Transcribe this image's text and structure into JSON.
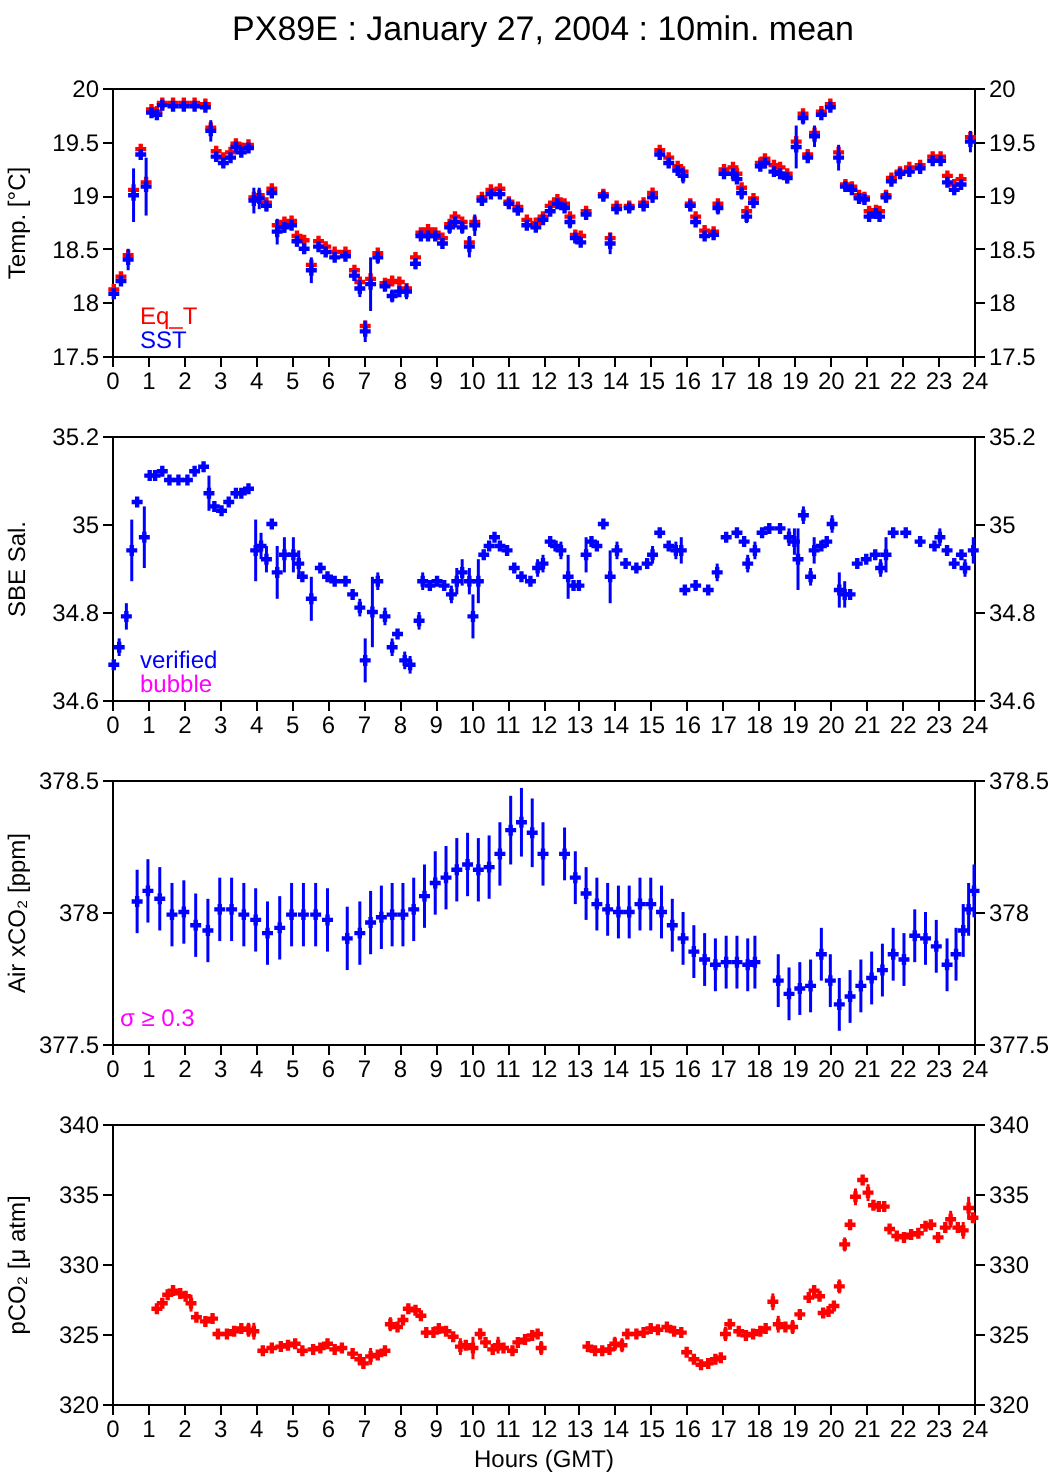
{
  "chart_data": [
    {
      "type": "scatter",
      "title": "PX89E : January 27, 2004 : 10min. mean",
      "ylabel": "Temp. [°C]",
      "marker": "cross",
      "legend": "bottom left",
      "xlim": [
        0,
        24
      ],
      "xticks": [
        0,
        1,
        2,
        3,
        4,
        5,
        6,
        7,
        8,
        9,
        10,
        11,
        12,
        13,
        14,
        15,
        16,
        17,
        18,
        19,
        20,
        21,
        22,
        23,
        24
      ],
      "ylim": [
        17.5,
        20
      ],
      "yticks": [
        17.5,
        18,
        18.5,
        19,
        19.5,
        20
      ],
      "y2lim": [
        17.5,
        20
      ],
      "y2ticks": [
        17.5,
        18,
        18.5,
        19,
        19.5,
        20
      ],
      "x": [
        0.05,
        0.25,
        0.45,
        0.6,
        0.8,
        0.95,
        1.1,
        1.25,
        1.4,
        1.7,
        2.0,
        2.3,
        2.6,
        2.75,
        2.9,
        3.1,
        3.3,
        3.45,
        3.6,
        3.8,
        3.95,
        4.1,
        4.3,
        4.45,
        4.6,
        4.8,
        5.0,
        5.15,
        5.35,
        5.55,
        5.75,
        5.95,
        6.2,
        6.5,
        6.75,
        6.9,
        7.05,
        7.2,
        7.4,
        7.6,
        7.8,
        8.0,
        8.2,
        8.45,
        8.6,
        8.8,
        9.0,
        9.2,
        9.4,
        9.55,
        9.75,
        9.95,
        10.1,
        10.3,
        10.55,
        10.8,
        11.05,
        11.3,
        11.55,
        11.8,
        12.0,
        12.2,
        12.4,
        12.6,
        12.75,
        12.9,
        13.05,
        13.2,
        13.68,
        13.87,
        14.05,
        14.4,
        14.8,
        15.05,
        15.25,
        15.5,
        15.75,
        15.9,
        16.1,
        16.25,
        16.5,
        16.75,
        16.87,
        17.04,
        17.29,
        17.4,
        17.53,
        17.67,
        17.86,
        18.05,
        18.18,
        18.43,
        18.6,
        18.8,
        19.05,
        19.24,
        19.37,
        19.56,
        19.75,
        20.0,
        20.23,
        20.42,
        20.6,
        20.8,
        20.95,
        21.08,
        21.27,
        21.37,
        21.55,
        21.7,
        21.94,
        22.2,
        22.5,
        22.85,
        23.07,
        23.26,
        23.45,
        23.64,
        23.9
      ],
      "series": [
        {
          "name": "Eq_T",
          "color": "#ff0000",
          "values": [
            18.12,
            18.24,
            18.44,
            19.05,
            19.43,
            19.12,
            19.8,
            19.78,
            19.86,
            19.86,
            19.86,
            19.86,
            19.85,
            19.63,
            19.41,
            19.35,
            19.4,
            19.48,
            19.44,
            19.47,
            18.98,
            19.0,
            18.93,
            19.06,
            18.72,
            18.75,
            18.76,
            18.62,
            18.58,
            18.35,
            18.57,
            18.52,
            18.47,
            18.47,
            18.3,
            18.19,
            17.78,
            18.22,
            18.46,
            18.18,
            18.2,
            18.19,
            18.13,
            18.42,
            18.65,
            18.68,
            18.65,
            18.6,
            18.73,
            18.8,
            18.75,
            18.56,
            18.75,
            18.98,
            19.05,
            19.06,
            18.94,
            18.89,
            18.77,
            18.74,
            18.8,
            18.9,
            18.96,
            18.92,
            18.8,
            18.63,
            18.62,
            18.85,
            19.01,
            18.6,
            18.9,
            18.9,
            18.93,
            19.02,
            19.42,
            19.35,
            19.27,
            19.22,
            18.92,
            18.8,
            18.67,
            18.66,
            18.92,
            19.24,
            19.26,
            19.2,
            19.07,
            18.85,
            18.97,
            19.3,
            19.34,
            19.28,
            19.26,
            19.2,
            19.5,
            19.76,
            19.38,
            19.58,
            19.78,
            19.85,
            19.4,
            19.1,
            19.08,
            19.0,
            18.98,
            18.85,
            18.86,
            18.85,
            19.0,
            19.16,
            19.22,
            19.26,
            19.28,
            19.36,
            19.36,
            19.18,
            19.1,
            19.15,
            19.54
          ]
        },
        {
          "name": "SST",
          "color": "#0000ff",
          "values": [
            18.08,
            18.2,
            18.4,
            19.0,
            19.38,
            19.08,
            19.77,
            19.75,
            19.84,
            19.83,
            19.83,
            19.83,
            19.82,
            19.6,
            19.36,
            19.3,
            19.35,
            19.45,
            19.4,
            19.44,
            18.95,
            18.97,
            18.9,
            19.02,
            18.66,
            18.7,
            18.72,
            18.57,
            18.5,
            18.3,
            18.52,
            18.47,
            18.42,
            18.43,
            18.25,
            18.13,
            17.73,
            18.17,
            18.42,
            18.15,
            18.06,
            18.1,
            18.1,
            18.36,
            18.62,
            18.62,
            18.62,
            18.55,
            18.7,
            18.75,
            18.7,
            18.52,
            18.72,
            18.95,
            19.01,
            19.01,
            18.92,
            18.86,
            18.72,
            18.7,
            18.77,
            18.85,
            18.92,
            18.88,
            18.75,
            18.6,
            18.56,
            18.82,
            18.99,
            18.55,
            18.87,
            18.88,
            18.9,
            18.98,
            19.38,
            19.3,
            19.23,
            19.18,
            18.9,
            18.75,
            18.62,
            18.63,
            18.88,
            19.2,
            19.2,
            19.15,
            19.02,
            18.8,
            18.93,
            19.27,
            19.3,
            19.22,
            19.2,
            19.16,
            19.45,
            19.72,
            19.35,
            19.55,
            19.75,
            19.82,
            19.35,
            19.08,
            19.05,
            18.97,
            18.96,
            18.8,
            18.83,
            18.8,
            18.98,
            19.13,
            19.2,
            19.22,
            19.25,
            19.32,
            19.32,
            19.12,
            19.05,
            19.1,
            19.5
          ],
          "errors": [
            null,
            0.04,
            0.1,
            0.25,
            null,
            0.27,
            0.04,
            null,
            null,
            null,
            null,
            null,
            null,
            0.1,
            null,
            0.03,
            null,
            null,
            0.04,
            0.03,
            0.12,
            0.1,
            0.05,
            null,
            0.12,
            0.05,
            0.04,
            0.05,
            0.03,
            0.12,
            0.04,
            null,
            null,
            null,
            0.03,
            0.08,
            0.1,
            0.25,
            0.06,
            0.04,
            0.06,
            0.03,
            0.07,
            0.05,
            0.04,
            null,
            null,
            0.05,
            0.06,
            0.05,
            0.06,
            0.1,
            0.1,
            0.05,
            null,
            null,
            null,
            null,
            0.04,
            0.04,
            null,
            null,
            null,
            0.04,
            0.06,
            null,
            null,
            0.05,
            null,
            0.1,
            null,
            null,
            null,
            0.05,
            0.04,
            0.04,
            0.04,
            0.07,
            0.05,
            null,
            null,
            0.03,
            0.06,
            0.03,
            null,
            0.03,
            0.06,
            0.06,
            0.05,
            0.04,
            null,
            0.04,
            0.04,
            0.05,
            0.2,
            0.06,
            0.04,
            0.1,
            0.03,
            null,
            0.12,
            null,
            0.03,
            null,
            0.04,
            null,
            0.03,
            0.05,
            0.05,
            null,
            null,
            null,
            null,
            0.03,
            null,
            0.04,
            null,
            0.04,
            0.1
          ]
        }
      ]
    },
    {
      "type": "scatter",
      "ylabel": "SBE Sal.",
      "marker": "cross",
      "legend": "bottom left",
      "xlim": [
        0,
        24
      ],
      "xticks": [
        0,
        1,
        2,
        3,
        4,
        5,
        6,
        7,
        8,
        9,
        10,
        11,
        12,
        13,
        14,
        15,
        16,
        17,
        18,
        19,
        20,
        21,
        22,
        23,
        24
      ],
      "ylim": [
        34.6,
        35.2
      ],
      "yticks": [
        34.6,
        34.8,
        35,
        35.2
      ],
      "y2lim": [
        34.6,
        35.2
      ],
      "y2ticks": [
        34.6,
        34.8,
        35,
        35.2
      ],
      "series": [
        {
          "name": "verified",
          "color": "#0000ff",
          "x": [
            0.05,
            0.2,
            0.4,
            0.55,
            0.7,
            0.9,
            1.05,
            1.2,
            1.4,
            1.6,
            1.85,
            2.1,
            2.3,
            2.55,
            2.7,
            2.85,
            3.05,
            3.25,
            3.45,
            3.6,
            3.8,
            4.0,
            4.15,
            4.3,
            4.45,
            4.6,
            4.8,
            5.05,
            5.2,
            5.3,
            5.55,
            5.8,
            6.0,
            6.2,
            6.5,
            6.7,
            6.9,
            7.05,
            7.25,
            7.4,
            7.6,
            7.8,
            7.95,
            8.15,
            8.3,
            8.55,
            8.65,
            8.85,
            9.05,
            9.25,
            9.45,
            9.6,
            9.75,
            9.95,
            10.05,
            10.2,
            10.35,
            10.5,
            10.65,
            10.8,
            11.0,
            11.2,
            11.4,
            11.65,
            11.85,
            12.0,
            12.2,
            12.35,
            12.5,
            12.7,
            12.85,
            13.0,
            13.2,
            13.35,
            13.5,
            13.68,
            13.87,
            14.06,
            14.3,
            14.6,
            14.9,
            15.05,
            15.25,
            15.5,
            15.7,
            15.85,
            15.95,
            16.25,
            16.6,
            16.85,
            17.1,
            17.4,
            17.6,
            17.7,
            17.9,
            18.1,
            18.3,
            18.6,
            18.85,
            19.0,
            19.1,
            19.25,
            19.45,
            19.55,
            19.75,
            19.9,
            20.05,
            20.25,
            20.4,
            20.55,
            20.75,
            21.0,
            21.25,
            21.4,
            21.55,
            21.75,
            22.1,
            22.5,
            22.9,
            23.05,
            23.25,
            23.45,
            23.65,
            23.75,
            23.98
          ],
          "values": [
            34.68,
            34.72,
            34.79,
            34.94,
            35.05,
            34.97,
            35.11,
            35.11,
            35.12,
            35.1,
            35.1,
            35.1,
            35.12,
            35.13,
            35.07,
            35.04,
            35.03,
            35.05,
            35.07,
            35.07,
            35.08,
            34.94,
            34.95,
            34.92,
            35.0,
            34.89,
            34.93,
            34.93,
            34.91,
            34.88,
            34.83,
            34.9,
            34.88,
            34.87,
            34.87,
            34.84,
            34.81,
            34.69,
            34.8,
            34.87,
            34.79,
            34.72,
            34.75,
            34.69,
            34.68,
            34.78,
            34.87,
            34.86,
            34.87,
            34.86,
            34.84,
            34.87,
            34.89,
            34.87,
            34.79,
            34.87,
            34.93,
            34.95,
            34.97,
            34.95,
            34.94,
            34.9,
            34.88,
            34.87,
            34.9,
            34.91,
            34.96,
            34.95,
            34.94,
            34.88,
            34.86,
            34.86,
            34.93,
            34.96,
            34.95,
            35.0,
            34.88,
            34.94,
            34.91,
            34.9,
            34.91,
            34.93,
            34.98,
            34.95,
            34.94,
            34.94,
            34.85,
            34.86,
            34.85,
            34.89,
            34.97,
            34.98,
            34.96,
            34.91,
            34.94,
            34.98,
            34.99,
            34.99,
            34.97,
            34.96,
            34.92,
            35.02,
            34.88,
            34.94,
            34.95,
            34.96,
            35.0,
            34.85,
            34.84,
            34.84,
            34.91,
            34.92,
            34.93,
            34.9,
            34.93,
            34.98,
            34.98,
            34.96,
            34.95,
            34.97,
            34.94,
            34.91,
            34.93,
            34.9,
            34.94
          ],
          "errors": [
            null,
            0.02,
            0.03,
            0.07,
            null,
            0.07,
            null,
            null,
            null,
            null,
            null,
            null,
            null,
            null,
            0.04,
            null,
            null,
            null,
            null,
            null,
            null,
            0.07,
            0.03,
            0.03,
            null,
            0.06,
            0.04,
            0.04,
            0.03,
            null,
            0.05,
            null,
            null,
            null,
            null,
            null,
            0.02,
            0.05,
            0.08,
            0.02,
            0.02,
            0.02,
            null,
            0.02,
            0.02,
            0.02,
            0.02,
            null,
            null,
            null,
            0.02,
            0.03,
            0.03,
            0.03,
            0.05,
            0.05,
            null,
            null,
            null,
            null,
            null,
            null,
            null,
            null,
            0.02,
            0.02,
            null,
            null,
            0.02,
            0.05,
            null,
            null,
            0.04,
            null,
            null,
            null,
            0.06,
            0.02,
            null,
            null,
            null,
            0.02,
            null,
            null,
            0.02,
            0.03,
            null,
            null,
            null,
            0.02,
            null,
            null,
            null,
            0.02,
            0.02,
            null,
            null,
            null,
            0.02,
            0.03,
            0.07,
            0.02,
            0.02,
            0.03,
            null,
            null,
            0.02,
            0.04,
            0.03,
            null,
            null,
            null,
            null,
            0.02,
            0.04,
            null,
            null,
            null,
            null,
            0.02,
            null,
            null,
            null,
            0.02,
            0.03
          ]
        },
        {
          "name": "bubble",
          "color": "#ff00ff"
        }
      ]
    },
    {
      "type": "scatter",
      "ylabel": "Air xCO₂ [ppm]",
      "marker": "cross",
      "annotations": [
        "σ ≥ 0.3"
      ],
      "xlim": [
        0,
        24
      ],
      "xticks": [
        0,
        1,
        2,
        3,
        4,
        5,
        6,
        7,
        8,
        9,
        10,
        11,
        12,
        13,
        14,
        15,
        16,
        17,
        18,
        19,
        20,
        21,
        22,
        23,
        24
      ],
      "ylim": [
        377.5,
        378.5
      ],
      "yticks": [
        377.5,
        378,
        378.5
      ],
      "y2lim": [
        377.5,
        378.5
      ],
      "y2ticks": [
        377.5,
        378,
        378.5
      ],
      "series": [
        {
          "color": "#0000ff",
          "x": [
            0.7,
            1.0,
            1.33,
            1.67,
            2.0,
            2.33,
            2.67,
            3.0,
            3.33,
            3.67,
            4.0,
            4.33,
            4.67,
            5.0,
            5.33,
            5.67,
            6.0,
            6.55,
            6.9,
            7.2,
            7.5,
            7.8,
            8.1,
            8.4,
            8.7,
            9.0,
            9.3,
            9.6,
            9.9,
            10.2,
            10.5,
            10.8,
            11.1,
            11.4,
            11.7,
            12.0,
            12.6,
            12.9,
            13.2,
            13.5,
            13.8,
            14.1,
            14.4,
            14.7,
            15.0,
            15.3,
            15.6,
            15.9,
            16.2,
            16.5,
            16.8,
            17.1,
            17.4,
            17.7,
            17.9,
            18.55,
            18.85,
            19.15,
            19.45,
            19.75,
            20.0,
            20.25,
            20.55,
            20.85,
            21.15,
            21.45,
            21.75,
            22.05,
            22.35,
            22.65,
            22.95,
            23.25,
            23.5,
            23.7,
            23.85,
            24.0
          ],
          "values": [
            378.04,
            378.08,
            378.05,
            377.99,
            378.0,
            377.95,
            377.93,
            378.01,
            378.01,
            377.99,
            377.97,
            377.92,
            377.94,
            377.99,
            377.99,
            377.99,
            377.97,
            377.9,
            377.92,
            377.96,
            377.98,
            377.99,
            377.99,
            378.01,
            378.06,
            378.11,
            378.13,
            378.16,
            378.18,
            378.16,
            378.17,
            378.22,
            378.31,
            378.34,
            378.3,
            378.22,
            378.22,
            378.13,
            378.07,
            378.03,
            378.01,
            378.0,
            378.0,
            378.03,
            378.03,
            378.0,
            377.95,
            377.9,
            377.85,
            377.82,
            377.8,
            377.81,
            377.81,
            377.8,
            377.81,
            377.74,
            377.69,
            377.71,
            377.72,
            377.84,
            377.74,
            377.65,
            377.68,
            377.72,
            377.75,
            377.78,
            377.84,
            377.82,
            377.91,
            377.9,
            377.87,
            377.8,
            377.84,
            377.93,
            378.01,
            378.08
          ],
          "errors": [
            0.12,
            0.12,
            0.12,
            0.12,
            0.12,
            0.12,
            0.12,
            0.12,
            0.12,
            0.12,
            0.12,
            0.12,
            0.12,
            0.12,
            0.12,
            0.12,
            0.12,
            0.12,
            0.12,
            0.12,
            0.12,
            0.12,
            0.12,
            0.12,
            0.12,
            0.12,
            0.12,
            0.12,
            0.12,
            0.12,
            0.12,
            0.12,
            0.13,
            0.13,
            0.13,
            0.12,
            0.1,
            0.1,
            0.1,
            0.1,
            0.1,
            0.1,
            0.1,
            0.1,
            0.1,
            0.1,
            0.1,
            0.1,
            0.1,
            0.1,
            0.1,
            0.1,
            0.1,
            0.1,
            0.1,
            0.1,
            0.1,
            0.1,
            0.1,
            0.1,
            0.1,
            0.1,
            0.1,
            0.1,
            0.1,
            0.1,
            0.1,
            0.1,
            0.1,
            0.1,
            0.1,
            0.1,
            0.1,
            0.1,
            0.1,
            0.1
          ]
        }
      ]
    },
    {
      "type": "scatter",
      "ylabel": "pCO₂ [μ atm]",
      "xlabel": "Hours (GMT)",
      "marker": "cross",
      "xlim": [
        0,
        24
      ],
      "xticks": [
        0,
        1,
        2,
        3,
        4,
        5,
        6,
        7,
        8,
        9,
        10,
        11,
        12,
        13,
        14,
        15,
        16,
        17,
        18,
        19,
        20,
        21,
        22,
        23,
        24
      ],
      "ylim": [
        320,
        340
      ],
      "yticks": [
        320,
        325,
        330,
        335,
        340
      ],
      "y2lim": [
        320,
        340
      ],
      "y2ticks": [
        320,
        325,
        330,
        335,
        340
      ],
      "series": [
        {
          "color": "#ff0000",
          "x": [
            1.25,
            1.4,
            1.55,
            1.7,
            1.9,
            2.05,
            2.2,
            2.35,
            2.6,
            2.8,
            2.95,
            3.2,
            3.4,
            3.6,
            3.8,
            3.95,
            4.2,
            4.45,
            4.7,
            4.9,
            5.1,
            5.3,
            5.6,
            5.8,
            6.0,
            6.2,
            6.4,
            6.7,
            6.9,
            7.0,
            7.2,
            7.4,
            7.6,
            7.75,
            7.95,
            8.1,
            8.25,
            8.45,
            8.6,
            8.75,
            8.95,
            9.1,
            9.3,
            9.5,
            9.7,
            9.85,
            10.05,
            10.25,
            10.4,
            10.6,
            10.75,
            10.9,
            11.15,
            11.3,
            11.5,
            11.7,
            11.85,
            11.95,
            13.25,
            13.45,
            13.65,
            13.85,
            14.0,
            14.2,
            14.35,
            14.6,
            14.8,
            15.0,
            15.2,
            15.45,
            15.65,
            15.85,
            16.0,
            16.2,
            16.4,
            16.6,
            16.8,
            16.95,
            17.08,
            17.2,
            17.45,
            17.65,
            17.85,
            18.05,
            18.2,
            18.4,
            18.55,
            18.75,
            18.95,
            19.15,
            19.4,
            19.55,
            19.7,
            19.8,
            19.95,
            20.1,
            20.25,
            20.4,
            20.55,
            20.7,
            20.9,
            21.05,
            21.2,
            21.35,
            21.5,
            21.65,
            21.85,
            22.05,
            22.25,
            22.45,
            22.65,
            22.8,
            23.0,
            23.2,
            23.35,
            23.55,
            23.7,
            23.85,
            23.97
          ],
          "values": [
            326.8,
            327.2,
            327.8,
            328.1,
            327.9,
            327.7,
            327.2,
            326.2,
            325.9,
            326.1,
            325.0,
            325.0,
            325.2,
            325.4,
            325.3,
            325.2,
            323.8,
            324.0,
            324.1,
            324.2,
            324.3,
            323.8,
            323.9,
            324.0,
            324.3,
            323.9,
            324.0,
            323.6,
            323.2,
            322.9,
            323.4,
            323.5,
            323.8,
            325.7,
            325.5,
            326.0,
            326.8,
            326.7,
            326.3,
            325.1,
            325.1,
            325.4,
            325.2,
            324.8,
            324.1,
            324.2,
            324.0,
            325.0,
            324.4,
            323.9,
            324.2,
            324.0,
            323.8,
            324.4,
            324.6,
            324.9,
            325.0,
            324.0,
            324.1,
            323.8,
            323.8,
            323.9,
            324.3,
            324.2,
            325.0,
            325.0,
            325.1,
            325.4,
            325.3,
            325.5,
            325.2,
            325.1,
            323.7,
            323.2,
            322.8,
            322.9,
            323.2,
            323.3,
            325.0,
            325.7,
            325.2,
            324.9,
            325.0,
            325.2,
            325.4,
            327.3,
            325.7,
            325.5,
            325.5,
            326.4,
            327.6,
            328.1,
            327.7,
            326.5,
            326.6,
            327.0,
            328.4,
            331.4,
            332.8,
            334.8,
            336.0,
            335.1,
            334.2,
            334.1,
            334.1,
            332.5,
            332.0,
            331.9,
            332.1,
            332.2,
            332.7,
            332.8,
            331.9,
            332.6,
            333.2,
            332.6,
            332.4,
            334.0,
            333.3
          ],
          "errors": [
            null,
            null,
            null,
            null,
            null,
            null,
            0.6,
            null,
            null,
            null,
            null,
            null,
            null,
            null,
            0.5,
            0.6,
            null,
            null,
            null,
            null,
            null,
            null,
            null,
            null,
            null,
            null,
            null,
            null,
            null,
            0.4,
            0.6,
            null,
            null,
            0.5,
            null,
            null,
            null,
            null,
            null,
            null,
            null,
            null,
            null,
            null,
            0.6,
            null,
            0.8,
            0.4,
            null,
            null,
            0.6,
            null,
            null,
            null,
            null,
            null,
            null,
            0.5,
            0.4,
            null,
            null,
            null,
            0.5,
            0.5,
            null,
            null,
            null,
            null,
            null,
            null,
            null,
            null,
            null,
            null,
            null,
            null,
            null,
            null,
            0.5,
            null,
            null,
            null,
            null,
            null,
            null,
            0.6,
            0.6,
            null,
            0.5,
            null,
            null,
            null,
            null,
            null,
            null,
            null,
            0.5,
            0.5,
            null,
            0.6,
            null,
            0.6,
            null,
            null,
            null,
            null,
            null,
            null,
            null,
            null,
            null,
            null,
            null,
            null,
            0.6,
            null,
            0.6,
            0.8,
            null
          ]
        }
      ]
    }
  ]
}
